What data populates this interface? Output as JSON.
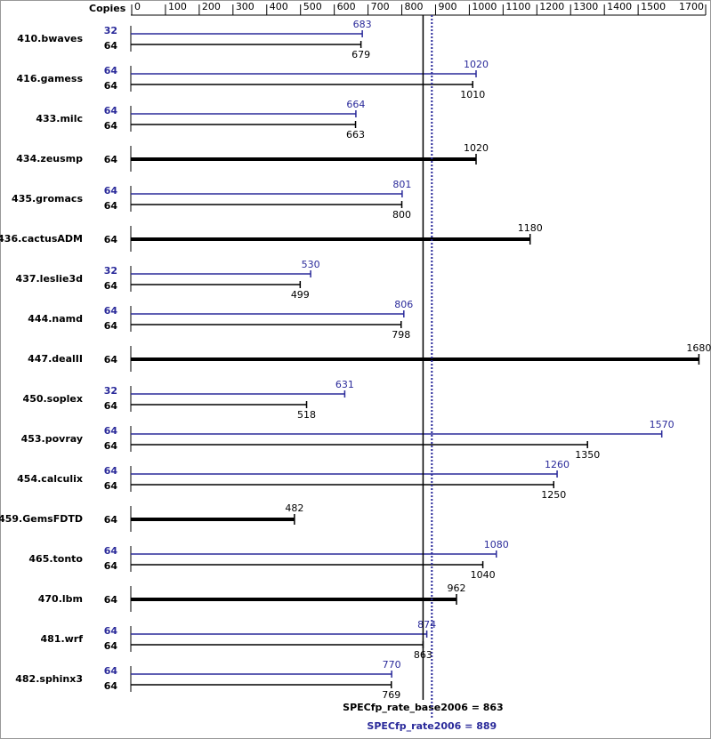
{
  "chart_data": {
    "type": "bar",
    "orientation": "horizontal",
    "copies_header": "Copies",
    "categories": [
      "410.bwaves",
      "416.gamess",
      "433.milc",
      "434.zeusmp",
      "435.gromacs",
      "436.cactusADM",
      "437.leslie3d",
      "444.namd",
      "447.dealII",
      "450.soplex",
      "453.povray",
      "454.calculix",
      "459.GemsFDTD",
      "465.tonto",
      "470.lbm",
      "481.wrf",
      "482.sphinx3"
    ],
    "series": [
      {
        "color": "#000000",
        "copies": [
          64,
          64,
          64,
          64,
          64,
          64,
          64,
          64,
          64,
          64,
          64,
          64,
          64,
          64,
          64,
          64,
          64
        ],
        "values": [
          679,
          1010,
          663,
          1020,
          800,
          1180,
          499,
          798,
          1680,
          518,
          1350,
          1250,
          482,
          1040,
          962,
          863,
          769
        ]
      },
      {
        "color": "#2a2a9a",
        "copies": [
          32,
          64,
          64,
          null,
          64,
          null,
          32,
          64,
          null,
          32,
          64,
          64,
          null,
          64,
          null,
          64,
          64
        ],
        "values": [
          683,
          1020,
          664,
          null,
          801,
          null,
          530,
          806,
          null,
          631,
          1570,
          1260,
          null,
          1080,
          null,
          874,
          770
        ]
      }
    ],
    "xlim": [
      0,
      1700
    ],
    "xticks": [
      0,
      100,
      200,
      300,
      400,
      500,
      600,
      700,
      800,
      900,
      1000,
      1100,
      1200,
      1300,
      1400,
      1500,
      1700
    ],
    "summary": [
      {
        "value": 863,
        "label": "SPECfp_rate_base2006 = 863",
        "color": "#000000"
      },
      {
        "value": 889,
        "label": "SPECfp_rate2006 = 889",
        "color": "#2a2a9a"
      }
    ]
  }
}
